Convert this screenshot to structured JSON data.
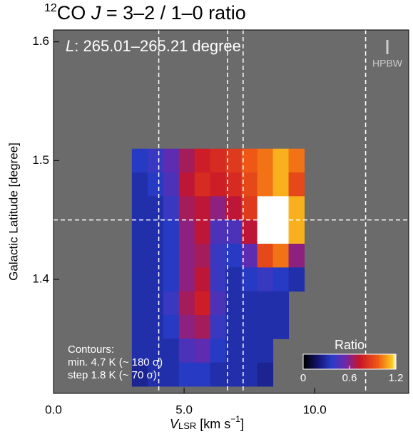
{
  "chart_data": {
    "type": "heatmap",
    "title": {
      "isotope": "12",
      "molecule": "CO ",
      "symbol": "J",
      "rest": " = 3–2 / 1–0 ratio"
    },
    "annotation": {
      "symbol": "L",
      "text": ": 265.01–265.21 degree"
    },
    "beam_label": "HPBW",
    "contour_note": [
      "Contours:",
      "min. 4.7 K (~ 180 σ)",
      "step 1.8 K (~ 70 σ)"
    ],
    "xlabel": {
      "symbol": "V",
      "sub": "LSR",
      "unit": " [km s",
      "sup": "−1",
      "end": "]"
    },
    "ylabel": "Galactic Latitude [degree]",
    "xlim": [
      0,
      13.6
    ],
    "ylim": [
      1.304,
      1.61
    ],
    "xticks": [
      {
        "value": 0,
        "label": "0.0"
      },
      {
        "value": 5,
        "label": "5.0"
      },
      {
        "value": 10,
        "label": "10.0"
      }
    ],
    "yticks": [
      1.4,
      1.5,
      1.6
    ],
    "x": [
      3.3,
      3.9,
      4.5,
      5.1,
      5.7,
      6.3,
      6.9,
      7.5,
      8.1,
      8.7,
      9.3
    ],
    "y": [
      1.5,
      1.48,
      1.46,
      1.44,
      1.42,
      1.4,
      1.38,
      1.36,
      1.34,
      1.32
    ],
    "z": [
      [
        0.35,
        0.4,
        0.5,
        0.65,
        0.75,
        0.8,
        0.85,
        0.95,
        1.0,
        1.1,
        1.0
      ],
      [
        0.3,
        0.35,
        0.45,
        0.7,
        0.8,
        0.75,
        0.8,
        0.9,
        1.0,
        1.1,
        0.9
      ],
      [
        0.3,
        0.3,
        0.4,
        0.65,
        0.7,
        0.6,
        0.7,
        0.85,
        1.2,
        1.2,
        1.1
      ],
      [
        0.3,
        0.3,
        0.35,
        0.6,
        0.7,
        0.45,
        0.45,
        0.7,
        1.2,
        1.2,
        1.1
      ],
      [
        0.3,
        0.3,
        0.35,
        0.6,
        0.65,
        0.4,
        0.35,
        0.5,
        0.9,
        1.0,
        0.6
      ],
      [
        0.3,
        0.3,
        0.35,
        0.6,
        0.7,
        0.4,
        0.3,
        0.35,
        0.4,
        0.35,
        0.3
      ],
      [
        0.3,
        0.3,
        0.4,
        0.65,
        0.75,
        0.45,
        0.3,
        0.3,
        0.3,
        0.3,
        null
      ],
      [
        0.3,
        0.3,
        0.35,
        0.6,
        0.65,
        0.4,
        0.3,
        0.3,
        0.3,
        0.3,
        null
      ],
      [
        0.3,
        0.3,
        0.3,
        0.45,
        0.5,
        0.35,
        0.3,
        0.3,
        0.3,
        null,
        null
      ],
      [
        0.25,
        0.3,
        0.3,
        0.35,
        0.35,
        0.3,
        0.3,
        0.3,
        0.25,
        null,
        null
      ]
    ],
    "colorbar": {
      "title": "Ratio",
      "lim": [
        0,
        1.2
      ],
      "ticks": [
        0,
        0.6,
        1.2
      ]
    },
    "vlines": [
      4.03,
      6.66,
      7.26,
      11.95
    ],
    "hlines": [
      1.45
    ],
    "background": "#6b6b6b"
  }
}
